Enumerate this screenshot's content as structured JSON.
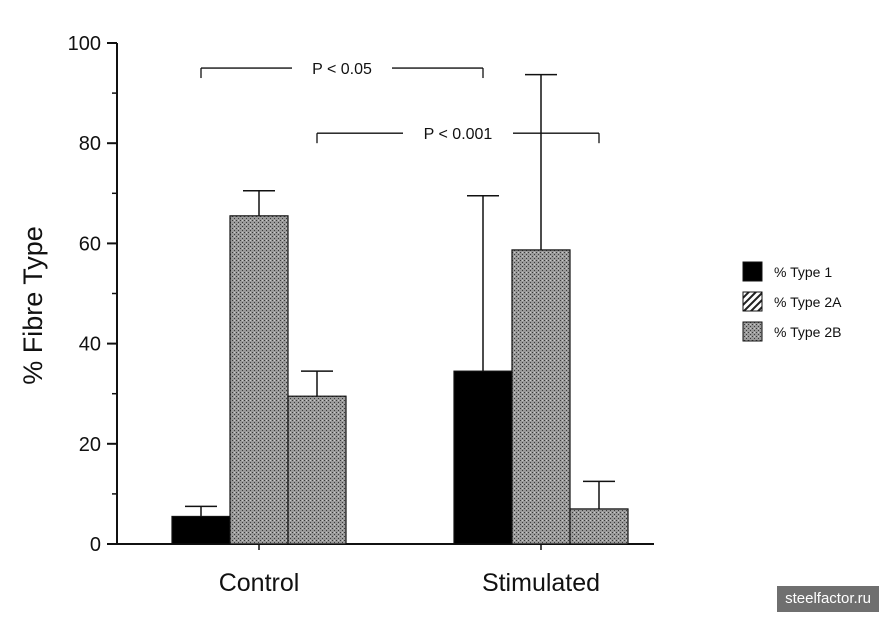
{
  "chart_data": {
    "type": "bar",
    "title": "",
    "xlabel": "",
    "ylabel": "% Fibre Type",
    "ylim": [
      0,
      100
    ],
    "yticks": [
      0,
      20,
      40,
      60,
      80,
      100
    ],
    "categories": [
      "Control",
      "Stimulated"
    ],
    "series": [
      {
        "name": "% Type 1",
        "values": [
          5.5,
          34.5
        ],
        "errors": [
          2,
          35
        ],
        "color": "#000000",
        "pattern": "solid"
      },
      {
        "name": "% Type 2A",
        "values": [
          65.5,
          58.7
        ],
        "errors": [
          5,
          35
        ],
        "color": "#8f8f8f",
        "pattern": "stipple"
      },
      {
        "name": "% Type 2B",
        "values": [
          29.5,
          7
        ],
        "errors": [
          5,
          5.5
        ],
        "color": "#8f8f8f",
        "pattern": "stipple"
      }
    ],
    "legend_position": "right",
    "grid": false,
    "annotations": [
      {
        "text": "P < 0.05",
        "from": {
          "category": "Control",
          "series": "% Type 1"
        },
        "to": {
          "category": "Stimulated",
          "series": "% Type 1"
        },
        "level": 95
      },
      {
        "text": "P < 0.001",
        "from": {
          "category": "Control",
          "series": "% Type 2B"
        },
        "to": {
          "category": "Stimulated",
          "series": "% Type 2B"
        },
        "level": 82
      }
    ]
  },
  "watermark": "steelfactor.ru"
}
